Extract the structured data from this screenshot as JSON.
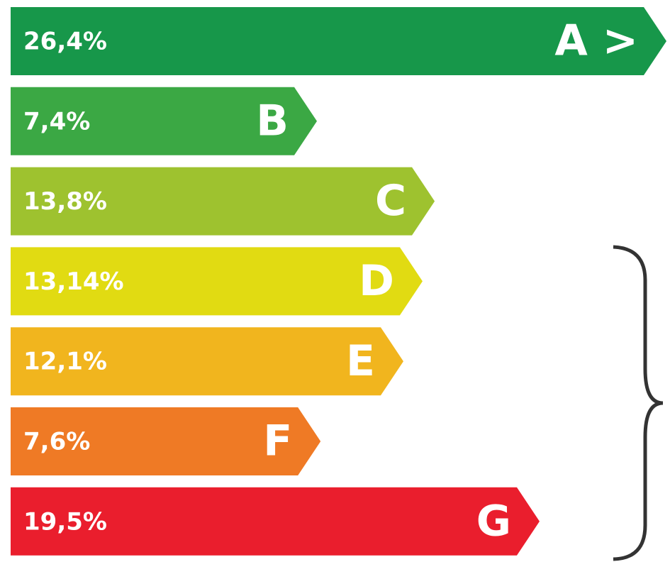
{
  "chart_data": {
    "type": "bar",
    "orientation": "horizontal",
    "categories": [
      "A >",
      "B",
      "C",
      "D",
      "E",
      "F",
      "G"
    ],
    "values": [
      26.4,
      7.4,
      13.8,
      13.14,
      12.1,
      7.6,
      19.5
    ],
    "value_labels": [
      "26,4%",
      "7,4%",
      "13,8%",
      "13,14%",
      "12,1%",
      "7,6%",
      "19,5%"
    ],
    "colors": [
      "#17974a",
      "#3ba844",
      "#9ec22f",
      "#e1db12",
      "#f1b51e",
      "#ef7a25",
      "#ea1e2d"
    ]
  }
}
